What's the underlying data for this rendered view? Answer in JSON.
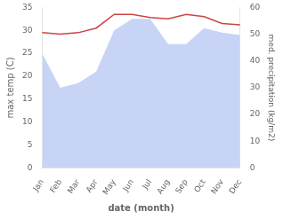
{
  "chart_data": {
    "type": "line",
    "xlabel": "date (month)",
    "ylabel": "max temp (C)",
    "y2label": "med. precipitation (kg/m2)",
    "categories": [
      "Jan",
      "Feb",
      "Mar",
      "Apr",
      "May",
      "Jun",
      "Jul",
      "Aug",
      "Sep",
      "Oct",
      "Nov",
      "Dec"
    ],
    "series": [
      {
        "type": "area",
        "color": "#c8d4f5",
        "values": [
          25.0,
          17.5,
          18.5,
          21.0,
          30.0,
          32.5,
          32.5,
          27.0,
          27.0,
          30.5,
          29.5,
          29.0
        ]
      },
      {
        "type": "line",
        "color": "#cc4444",
        "values": [
          29.5,
          29.2,
          29.5,
          30.5,
          33.5,
          33.5,
          32.8,
          32.5,
          33.5,
          33.0,
          31.5,
          31.2
        ]
      }
    ],
    "ylim": [
      0,
      35
    ],
    "yticks": [
      0,
      5,
      10,
      15,
      20,
      25,
      30,
      35
    ],
    "y2lim": [
      0,
      60
    ],
    "y2ticks": [
      0,
      10,
      20,
      30,
      40,
      50,
      60
    ],
    "grid": false
  }
}
